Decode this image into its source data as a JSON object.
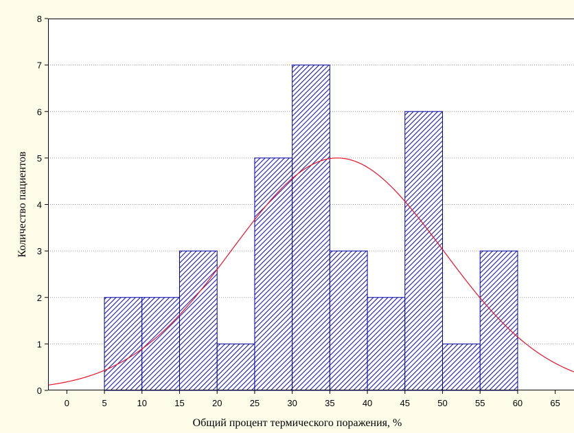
{
  "chart_data": {
    "type": "bar",
    "title": "",
    "xlabel": "Общий процент термического поражения, %",
    "ylabel": "Количество пациентов",
    "bin_width": 5,
    "bins": [
      {
        "start": 5,
        "end": 10,
        "count": 2
      },
      {
        "start": 10,
        "end": 15,
        "count": 2
      },
      {
        "start": 15,
        "end": 20,
        "count": 3
      },
      {
        "start": 20,
        "end": 25,
        "count": 1
      },
      {
        "start": 25,
        "end": 30,
        "count": 5
      },
      {
        "start": 30,
        "end": 35,
        "count": 7
      },
      {
        "start": 35,
        "end": 40,
        "count": 3
      },
      {
        "start": 40,
        "end": 45,
        "count": 2
      },
      {
        "start": 45,
        "end": 50,
        "count": 6
      },
      {
        "start": 50,
        "end": 55,
        "count": 1
      },
      {
        "start": 55,
        "end": 60,
        "count": 3
      }
    ],
    "xlim": [
      -2.5,
      67.5
    ],
    "ylim": [
      0,
      8
    ],
    "x_ticks": [
      0,
      5,
      10,
      15,
      20,
      25,
      30,
      35,
      40,
      45,
      50,
      55,
      60,
      65
    ],
    "y_ticks": [
      0,
      1,
      2,
      3,
      4,
      5,
      6,
      7,
      8
    ],
    "grid": true,
    "bar_fill_color": "#1a1aa8",
    "bar_edge_color": "#0000a0",
    "fit_curve": {
      "type": "normal",
      "mean": 36,
      "sd": 14,
      "peak": 5,
      "color": "#e8142a"
    }
  }
}
